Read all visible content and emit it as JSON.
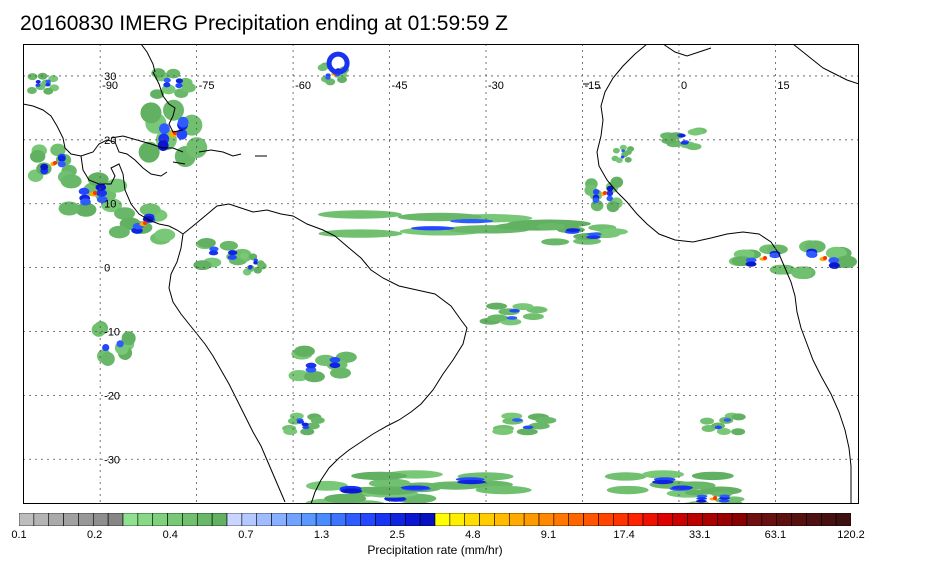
{
  "title": "20160830 IMERG Precipitation ending at 01:59:59 Z",
  "map": {
    "lon_range": [
      -102,
      28
    ],
    "lat_range": [
      -37,
      35
    ],
    "lon_ticks": [
      {
        "value": -90,
        "label": "-90"
      },
      {
        "value": -75,
        "label": "-75"
      },
      {
        "value": -60,
        "label": "-60"
      },
      {
        "value": -45,
        "label": "-45"
      },
      {
        "value": -30,
        "label": "-30"
      },
      {
        "value": -15,
        "label": "-15"
      },
      {
        "value": 0,
        "label": "0"
      },
      {
        "value": 15,
        "label": "15"
      }
    ],
    "lat_ticks": [
      {
        "value": 30,
        "label": "30"
      },
      {
        "value": 20,
        "label": "20"
      },
      {
        "value": 10,
        "label": "10"
      },
      {
        "value": 0,
        "label": "0"
      },
      {
        "value": -10,
        "label": "-10"
      },
      {
        "value": -20,
        "label": "-20"
      },
      {
        "value": -30,
        "label": "-30"
      }
    ],
    "grid": true,
    "frame_color": "#000000",
    "coast_color": "#000000",
    "cyclone_center": {
      "lon": -53,
      "lat": 32
    }
  },
  "colorbar": {
    "title": "Precipitation rate (mm/hr)",
    "labels": [
      "0.1",
      "0.2",
      "0.4",
      "0.7",
      "1.3",
      "2.5",
      "4.8",
      "9.1",
      "17.4",
      "33.1",
      "63.1",
      "120.2"
    ],
    "colors": [
      "#bdbdbd",
      "#b4b4b4",
      "#aaaaaa",
      "#a1a1a1",
      "#989898",
      "#8f8f8f",
      "#868686",
      "#8fe08f",
      "#87d887",
      "#7fd07f",
      "#78c878",
      "#70c070",
      "#69b869",
      "#62b062",
      "#c9d4ff",
      "#b5c8ff",
      "#9fbcff",
      "#89b0ff",
      "#72a4ff",
      "#5a98ff",
      "#4a8cff",
      "#3c74ff",
      "#2f5cff",
      "#2448ff",
      "#1834f0",
      "#1024e0",
      "#0a16d0",
      "#0610c0",
      "#ffff00",
      "#ffee00",
      "#ffdd00",
      "#ffcc00",
      "#ffbb00",
      "#ffaa00",
      "#ff9900",
      "#ff8800",
      "#ff7700",
      "#ff6600",
      "#ff5500",
      "#ff4400",
      "#ff3300",
      "#ff2200",
      "#ee1100",
      "#dd0000",
      "#cc0000",
      "#bb0000",
      "#aa0000",
      "#990000",
      "#880000",
      "#6e1010",
      "#661010",
      "#5e1010",
      "#561010",
      "#4e1010",
      "#461010",
      "#3e1010"
    ]
  }
}
